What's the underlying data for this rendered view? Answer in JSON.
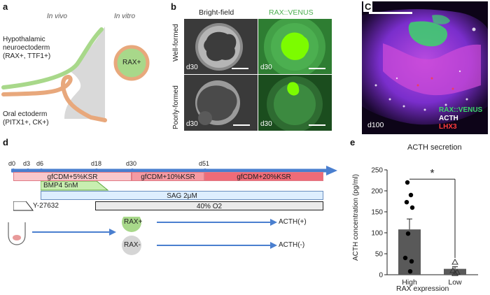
{
  "panel_a": {
    "letter": "a",
    "in_vivo": "In vivo",
    "in_vitro": "In vitro",
    "hypo_line1": "Hypothalamic",
    "hypo_line2": "neuroectoderm",
    "hypo_line3": "(RAX+, TTF1+)",
    "oral_line1": "Oral ectoderm",
    "oral_line2": "(PITX1+, CK+)",
    "circle_label": "RAX+",
    "colors": {
      "green": "#a8d88a",
      "orange": "#e8a87c",
      "gray": "#d9d9d9"
    }
  },
  "panel_b": {
    "letter": "b",
    "col1": "Bright-field",
    "col2": "RAX::VENUS",
    "row1": "Well-formed",
    "row2": "Poorly-formed",
    "day": "d30"
  },
  "panel_c": {
    "letter": "C",
    "day": "d100",
    "legend1": "RAX::VENUS",
    "legend2": "ACTH",
    "legend3": "LHX3"
  },
  "panel_d": {
    "letter": "d",
    "days": [
      "d0",
      "d3",
      "d6",
      "d18",
      "d30",
      "d51"
    ],
    "phases": [
      "gfCDM+5%KSR",
      "gfCDM+10%KSR",
      "gfCDM+20%KSR"
    ],
    "bmp4": "BMP4 5nM",
    "sag": "SAG 2μM",
    "y27632": "Y-27632",
    "o2": "40% O2",
    "rax_pos": "RAX+",
    "rax_neg": "RAX-",
    "acth_pos": "ACTH(+)",
    "acth_neg": "ACTH(-)"
  },
  "panel_e": {
    "letter": "e",
    "chart_data": {
      "type": "bar",
      "title": "ACTH secretion",
      "categories": [
        "High",
        "Low"
      ],
      "values": [
        108,
        14
      ],
      "errors": [
        25,
        5
      ],
      "xlabel": "RAX expression",
      "ylabel": "ACTH concentration (pg/ml)",
      "ylim": [
        0,
        250
      ],
      "yticks": [
        0,
        50,
        100,
        150,
        200,
        250
      ],
      "points_high": [
        220,
        190,
        173,
        160,
        98,
        40,
        32,
        8
      ],
      "points_low": [
        30,
        10,
        6,
        3
      ],
      "significance": "*"
    }
  }
}
